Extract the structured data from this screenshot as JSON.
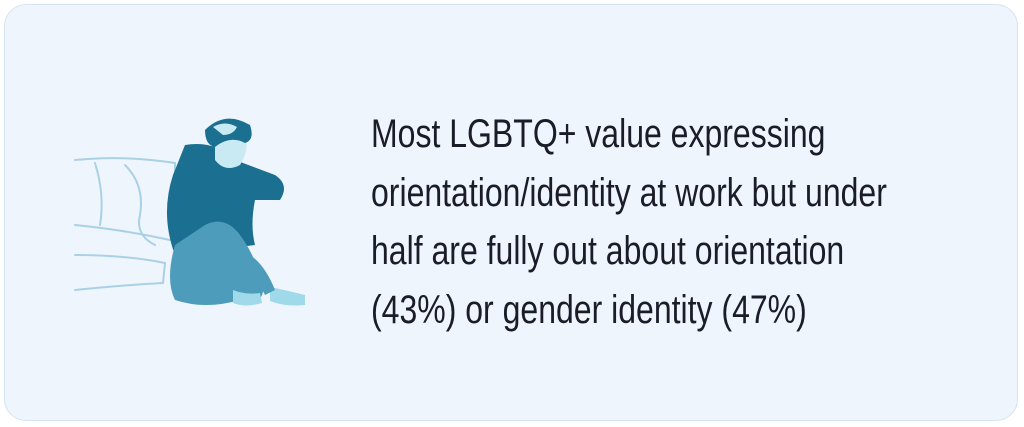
{
  "statement": {
    "lines": [
      "Most LGBTQ+ value expressing",
      "orientation/identity at work but under",
      "half are fully out about orientation",
      "(43%) or gender identity (47%)"
    ]
  }
}
